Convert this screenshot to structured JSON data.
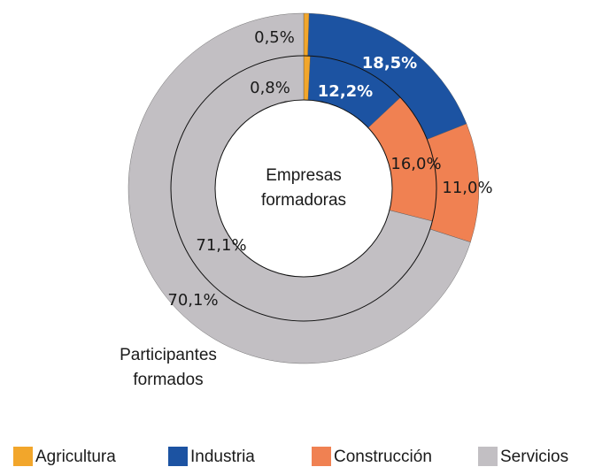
{
  "chart_data": {
    "type": "donut",
    "categories": [
      "Agricultura",
      "Industria",
      "Construcción",
      "Servicios"
    ],
    "colors": [
      "#f2a62b",
      "#1c53a2",
      "#f08152",
      "#c2bfc3"
    ],
    "series": [
      {
        "name": "Participantes formados",
        "values": [
          0.5,
          18.5,
          11.0,
          70.1
        ],
        "value_labels": [
          "0,5%",
          "18,5%",
          "11,0%",
          "70,1%"
        ]
      },
      {
        "name": "Empresas formadoras",
        "values": [
          0.8,
          12.2,
          16.0,
          71.1
        ],
        "value_labels": [
          "0,8%",
          "12,2%",
          "16,0%",
          "71,1%"
        ]
      }
    ],
    "legend": "bottom"
  }
}
